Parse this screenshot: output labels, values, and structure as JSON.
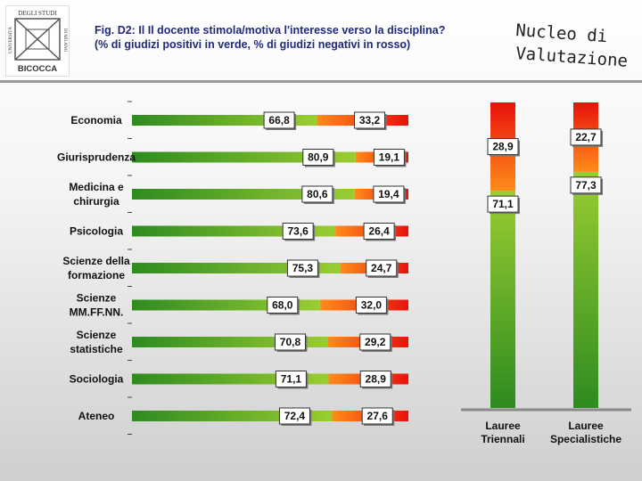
{
  "header": {
    "title_line1": "Fig. D2: Il Il docente stimola/motiva l'interesse verso la disciplina?",
    "title_line2": "(% di giudizi positivi in verde, % di giudizi negativi in rosso)",
    "brand_line1": "Nucleo di",
    "brand_line2": "Valutazione",
    "logo_text_left": "UNIVERSITÀ",
    "logo_text_top": "DEGLI STUDI",
    "logo_text_right": "DI MILANO",
    "logo_text_bottom": "BICOCCA"
  },
  "colors": {
    "positive_dark": "#2e8b1f",
    "positive_light": "#9acd32",
    "negative_light": "#ff8c1a",
    "negative_dark": "#e8120c"
  },
  "chart_data": [
    {
      "type": "bar",
      "orientation": "horizontal",
      "stacked": true,
      "categories": [
        "Economia",
        "Giurisprudenza",
        "Medicina e chirurgia",
        "Psicologia",
        "Scienze della formazione",
        "Scienze MM.FF.NN.",
        "Scienze statistiche",
        "Sociologia",
        "Ateneo"
      ],
      "series": [
        {
          "values": [
            66.8,
            80.9,
            80.6,
            73.6,
            75.3,
            68.0,
            70.8,
            71.1,
            72.4
          ],
          "labels": [
            "66,8",
            "80,9",
            "80,6",
            "73,6",
            "75,3",
            "68,0",
            "70,8",
            "71,1",
            "72,4"
          ]
        },
        {
          "values": [
            33.2,
            19.1,
            19.4,
            26.4,
            24.7,
            32.0,
            29.2,
            28.9,
            27.6
          ],
          "labels": [
            "33,2",
            "19,1",
            "19,4",
            "26,4",
            "24,7",
            "32,0",
            "29,2",
            "28,9",
            "27,6"
          ]
        }
      ],
      "xlim": [
        0,
        100
      ]
    },
    {
      "type": "bar",
      "orientation": "vertical",
      "stacked": true,
      "categories": [
        "Lauree Triennali",
        "Lauree Specialistiche"
      ],
      "series": [
        {
          "values": [
            71.1,
            77.3
          ],
          "labels": [
            "71,1",
            "77,3"
          ]
        },
        {
          "values": [
            28.9,
            22.7
          ],
          "labels": [
            "28,9",
            "22,7"
          ]
        }
      ],
      "ylim": [
        0,
        100
      ]
    }
  ]
}
